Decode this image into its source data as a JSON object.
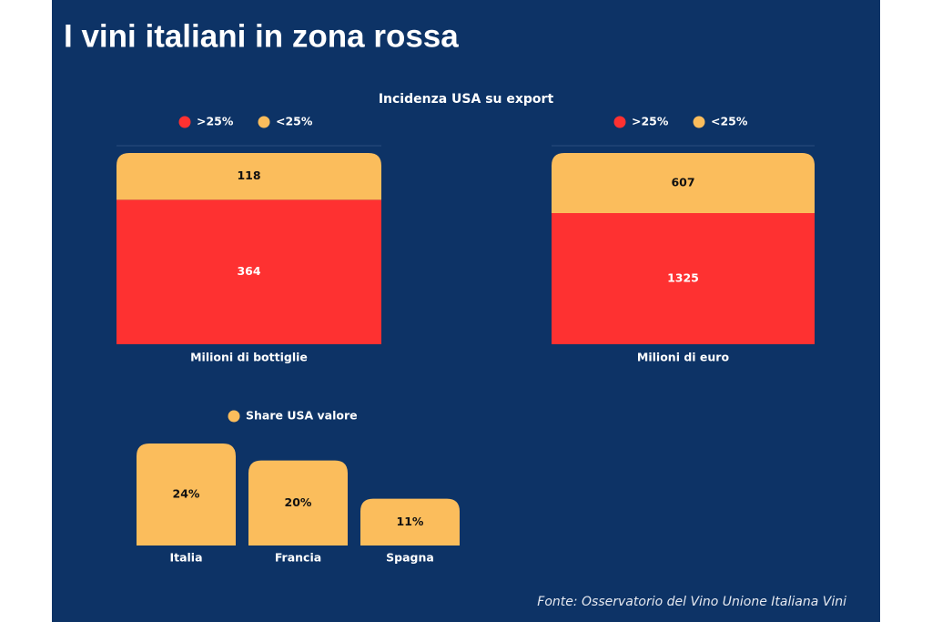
{
  "title": "I vini italiani in zona rossa",
  "subtitle": "Incidenza USA su export",
  "source": "Fonte: Osservatorio del Vino Unione Italiana Vini",
  "chart_data": [
    {
      "type": "bar",
      "stacked": true,
      "categories": [
        "Milioni di bottiglie"
      ],
      "series": [
        {
          "name": ">25%",
          "color": "#fe3131",
          "values": [
            364
          ]
        },
        {
          "name": "<25%",
          "color": "#fbbd5c",
          "values": [
            118
          ]
        }
      ]
    },
    {
      "type": "bar",
      "stacked": true,
      "categories": [
        "Milioni di euro"
      ],
      "series": [
        {
          "name": ">25%",
          "color": "#fe3131",
          "values": [
            1325
          ]
        },
        {
          "name": "<25%",
          "color": "#fbbd5c",
          "values": [
            607
          ]
        }
      ]
    },
    {
      "type": "bar",
      "categories": [
        "Italia",
        "Francia",
        "Spagna"
      ],
      "series": [
        {
          "name": "Share USA valore",
          "color": "#fbbd5c",
          "values": [
            24,
            20,
            11
          ],
          "value_labels": [
            "24%",
            "20%",
            "11%"
          ]
        }
      ]
    }
  ]
}
